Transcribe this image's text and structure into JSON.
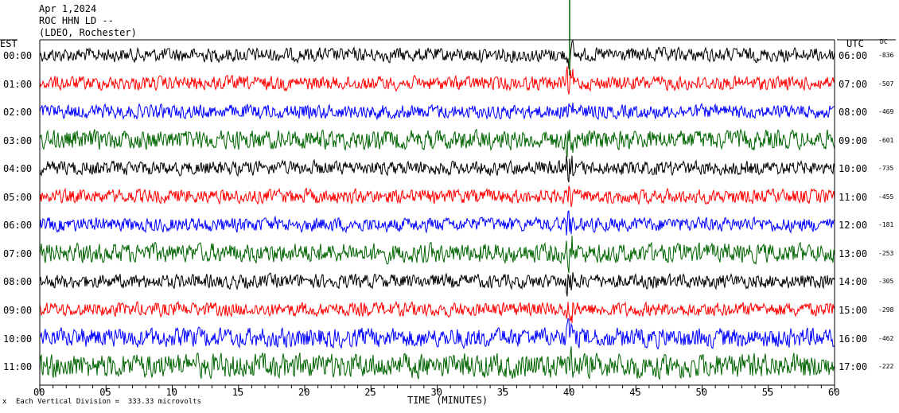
{
  "header": {
    "date": "Apr 1,2024",
    "station": "ROC HHN LD --",
    "network": "(LDEO, Rochester)"
  },
  "left_axis_label": "EST",
  "right_axis_label": "UTC",
  "dc_label": "DC",
  "footnote_mark": "x",
  "footnote": "Each Vertical Division =  333.33 microvolts",
  "chart_data": {
    "type": "line",
    "title": "Apr 1,2024 ROC HHN LD -- (LDEO, Rochester)",
    "xlabel": "TIME (MINUTES)",
    "xlim": [
      0,
      60
    ],
    "x_ticks": [
      "00",
      "05",
      "10",
      "15",
      "20",
      "25",
      "30",
      "35",
      "40",
      "45",
      "50",
      "55",
      "60"
    ],
    "trace_colors": [
      "#000000",
      "#ff0000",
      "#0000ff",
      "#006400"
    ],
    "series": [
      {
        "est": "00:00",
        "utc": "06:00",
        "dc": "-836"
      },
      {
        "est": "01:00",
        "utc": "07:00",
        "dc": "-507"
      },
      {
        "est": "02:00",
        "utc": "08:00",
        "dc": "-469"
      },
      {
        "est": "03:00",
        "utc": "09:00",
        "dc": "-601"
      },
      {
        "est": "04:00",
        "utc": "10:00",
        "dc": "-735"
      },
      {
        "est": "05:00",
        "utc": "11:00",
        "dc": "-455"
      },
      {
        "est": "06:00",
        "utc": "12:00",
        "dc": "-181"
      },
      {
        "est": "07:00",
        "utc": "13:00",
        "dc": "-253"
      },
      {
        "est": "08:00",
        "utc": "14:00",
        "dc": "-305"
      },
      {
        "est": "09:00",
        "utc": "15:00",
        "dc": "-298"
      },
      {
        "est": "10:00",
        "utc": "16:00",
        "dc": "-462"
      },
      {
        "est": "11:00",
        "utc": "17:00",
        "dc": "-222"
      }
    ]
  }
}
